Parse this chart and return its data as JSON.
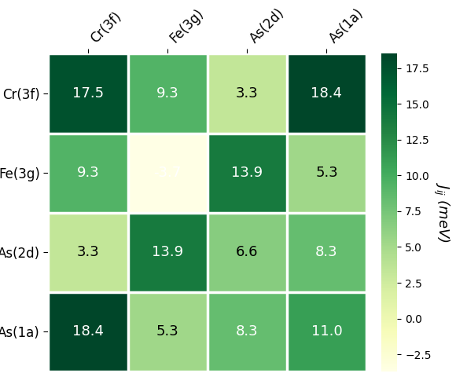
{
  "labels": [
    "Cr(3f)",
    "Fe(3g)",
    "As(2d)",
    "As(1a)"
  ],
  "matrix": [
    [
      17.5,
      9.3,
      3.3,
      18.4
    ],
    [
      9.3,
      -3.7,
      13.9,
      5.3
    ],
    [
      3.3,
      13.9,
      6.6,
      8.3
    ],
    [
      18.4,
      5.3,
      8.3,
      11.0
    ]
  ],
  "vmin": -3.7,
  "vmax": 18.5,
  "colorbar_label": "$J_{ij}$ (meV)",
  "colormap": "YlGn",
  "background_color": "#ffffff",
  "cbar_ticks": [
    -2.5,
    0.0,
    2.5,
    5.0,
    7.5,
    10.0,
    12.5,
    15.0,
    17.5
  ],
  "tick_fontsize": 11,
  "label_fontsize": 12,
  "cell_fontsize": 13,
  "cbar_label_fontsize": 13
}
